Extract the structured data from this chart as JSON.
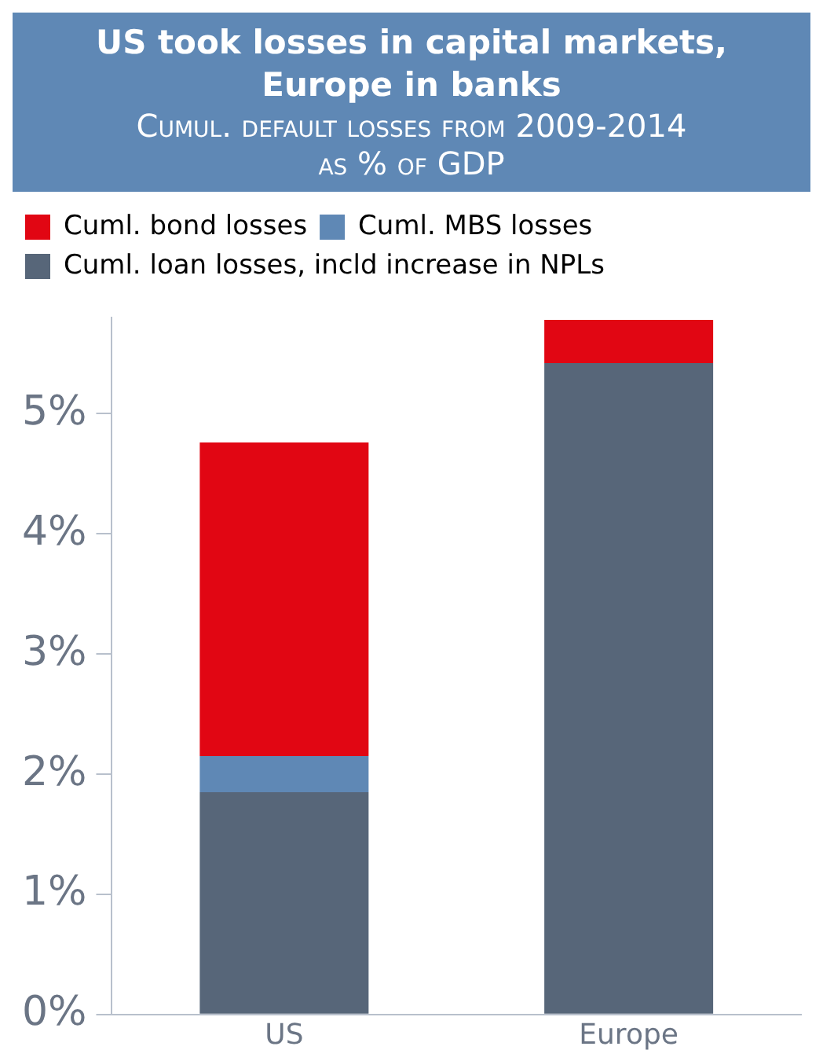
{
  "chart_data": {
    "type": "bar",
    "title": "US took losses in capital markets, Europe in banks",
    "subtitle": "Cumul. default losses from 2009-2014 as % of GDP",
    "categories": [
      "US",
      "Europe"
    ],
    "stacked": true,
    "series": [
      {
        "name": "Cuml. loan losses, incld increase in NPLs",
        "color": "#576679",
        "values": [
          1.85,
          5.42
        ]
      },
      {
        "name": "Cuml. MBS losses",
        "color": "#5f88b5",
        "values": [
          0.3,
          null
        ]
      },
      {
        "name": "Cuml. bond losses",
        "color": "#e10613",
        "values": [
          2.61,
          0.36
        ]
      }
    ],
    "ylim": [
      0,
      5.8
    ],
    "yticks": [
      {
        "value": 0,
        "label": "0%"
      },
      {
        "value": 1,
        "label": "1%"
      },
      {
        "value": 2,
        "label": "2%"
      },
      {
        "value": 3,
        "label": "3%"
      },
      {
        "value": 4,
        "label": "4%"
      },
      {
        "value": 5,
        "label": "5%"
      }
    ],
    "grid": false,
    "legend": "top left"
  }
}
